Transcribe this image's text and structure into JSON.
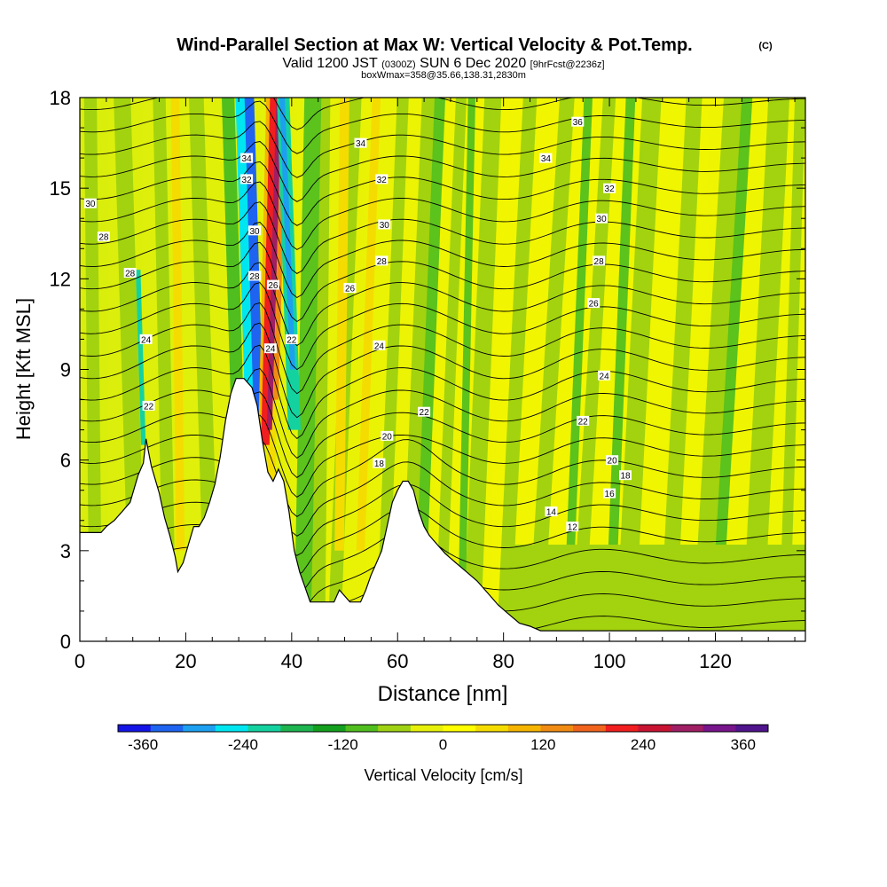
{
  "chart_data": {
    "type": "heatmap",
    "title": "Wind-Parallel Section at Max W: Vertical Velocity & Pot.Temp.",
    "title_mark": "(C)",
    "subtitle_parts": [
      "Valid 1200 JST",
      "(0300Z)",
      "SUN 6 Dec 2020",
      "[9hrFcst@2236z]"
    ],
    "subtitle2": "boxWmax=358@35.66,138.31,2830m",
    "xlabel": "Distance [nm]",
    "ylabel": "Height [Kft MSL]",
    "xlim": [
      0,
      137
    ],
    "ylim": [
      0,
      18
    ],
    "xticks": [
      0,
      20,
      40,
      60,
      80,
      100,
      120
    ],
    "yticks": [
      0,
      3,
      6,
      9,
      12,
      15,
      18
    ],
    "colorbar": {
      "label": "Vertical Velocity [cm/s]",
      "range": [
        -390,
        390
      ],
      "step": 30,
      "ticks": [
        -360,
        -240,
        -120,
        0,
        120,
        240,
        360
      ],
      "colors": [
        "#1414e6",
        "#1e64f0",
        "#1ea0f0",
        "#00e6f0",
        "#14d2a0",
        "#1eb450",
        "#14a01e",
        "#50be1e",
        "#a0d214",
        "#e6f00a",
        "#ffff00",
        "#f5dc00",
        "#f5b400",
        "#f08c14",
        "#f0641e",
        "#f01e1e",
        "#c81432",
        "#a01e64",
        "#78148c",
        "#50148c"
      ]
    },
    "theta_contour_labels": [
      {
        "v": "36",
        "x": 94,
        "y": 17.2
      },
      {
        "v": "34",
        "x": 53,
        "y": 16.5
      },
      {
        "v": "34",
        "x": 88,
        "y": 16.0
      },
      {
        "v": "34",
        "x": 31.5,
        "y": 16.0
      },
      {
        "v": "32",
        "x": 31.5,
        "y": 15.3
      },
      {
        "v": "32",
        "x": 57,
        "y": 15.3
      },
      {
        "v": "32",
        "x": 100,
        "y": 15.0
      },
      {
        "v": "30",
        "x": 2,
        "y": 14.5
      },
      {
        "v": "30",
        "x": 57.5,
        "y": 13.8
      },
      {
        "v": "30",
        "x": 98.5,
        "y": 14.0
      },
      {
        "v": "30",
        "x": 33,
        "y": 13.6
      },
      {
        "v": "28",
        "x": 4.5,
        "y": 13.4
      },
      {
        "v": "28",
        "x": 57,
        "y": 12.6
      },
      {
        "v": "28",
        "x": 98,
        "y": 12.6
      },
      {
        "v": "28",
        "x": 33,
        "y": 12.1
      },
      {
        "v": "28",
        "x": 9.5,
        "y": 12.2
      },
      {
        "v": "26",
        "x": 36.5,
        "y": 11.8
      },
      {
        "v": "26",
        "x": 51,
        "y": 11.7
      },
      {
        "v": "26",
        "x": 97,
        "y": 11.2
      },
      {
        "v": "24",
        "x": 12.5,
        "y": 10.0
      },
      {
        "v": "24",
        "x": 36,
        "y": 9.7
      },
      {
        "v": "24",
        "x": 56.5,
        "y": 9.8
      },
      {
        "v": "24",
        "x": 99,
        "y": 8.8
      },
      {
        "v": "22",
        "x": 40,
        "y": 10.0
      },
      {
        "v": "22",
        "x": 13,
        "y": 7.8
      },
      {
        "v": "22",
        "x": 65,
        "y": 7.6
      },
      {
        "v": "22",
        "x": 95,
        "y": 7.3
      },
      {
        "v": "20",
        "x": 58,
        "y": 6.8
      },
      {
        "v": "20",
        "x": 100.5,
        "y": 6.0
      },
      {
        "v": "18",
        "x": 56.5,
        "y": 5.9
      },
      {
        "v": "18",
        "x": 103,
        "y": 5.5
      },
      {
        "v": "16",
        "x": 100,
        "y": 4.9
      },
      {
        "v": "14",
        "x": 89,
        "y": 4.3
      },
      {
        "v": "12",
        "x": 93,
        "y": 3.8
      }
    ],
    "terrain_profile": [
      {
        "x": 0,
        "y": 3.6
      },
      {
        "x": 4,
        "y": 3.6
      },
      {
        "x": 5,
        "y": 3.8
      },
      {
        "x": 6.5,
        "y": 4.0
      },
      {
        "x": 8,
        "y": 4.3
      },
      {
        "x": 9.5,
        "y": 4.6
      },
      {
        "x": 11,
        "y": 5.5
      },
      {
        "x": 12,
        "y": 5.9
      },
      {
        "x": 12.5,
        "y": 6.7
      },
      {
        "x": 13.5,
        "y": 5.8
      },
      {
        "x": 15,
        "y": 4.9
      },
      {
        "x": 16,
        "y": 4.1
      },
      {
        "x": 17,
        "y": 3.5
      },
      {
        "x": 18,
        "y": 2.8
      },
      {
        "x": 18.5,
        "y": 2.3
      },
      {
        "x": 19.5,
        "y": 2.6
      },
      {
        "x": 20.5,
        "y": 3.2
      },
      {
        "x": 21.5,
        "y": 3.8
      },
      {
        "x": 22.5,
        "y": 3.8
      },
      {
        "x": 23.5,
        "y": 4.1
      },
      {
        "x": 24.5,
        "y": 4.6
      },
      {
        "x": 25.5,
        "y": 5.2
      },
      {
        "x": 26.5,
        "y": 6.1
      },
      {
        "x": 27.5,
        "y": 7.3
      },
      {
        "x": 28.5,
        "y": 8.2
      },
      {
        "x": 29.5,
        "y": 8.7
      },
      {
        "x": 31,
        "y": 8.7
      },
      {
        "x": 32.5,
        "y": 8.4
      },
      {
        "x": 33.5,
        "y": 7.8
      },
      {
        "x": 34.5,
        "y": 6.6
      },
      {
        "x": 35.5,
        "y": 5.6
      },
      {
        "x": 36.5,
        "y": 5.3
      },
      {
        "x": 37.5,
        "y": 5.7
      },
      {
        "x": 38.5,
        "y": 5.3
      },
      {
        "x": 39.5,
        "y": 4.3
      },
      {
        "x": 40.5,
        "y": 3.0
      },
      {
        "x": 41.5,
        "y": 2.3
      },
      {
        "x": 42.5,
        "y": 1.8
      },
      {
        "x": 43.5,
        "y": 1.3
      },
      {
        "x": 48,
        "y": 1.3
      },
      {
        "x": 49,
        "y": 1.7
      },
      {
        "x": 51,
        "y": 1.3
      },
      {
        "x": 53,
        "y": 1.3
      },
      {
        "x": 54,
        "y": 1.7
      },
      {
        "x": 55,
        "y": 2.2
      },
      {
        "x": 56,
        "y": 2.6
      },
      {
        "x": 57,
        "y": 3.0
      },
      {
        "x": 58,
        "y": 3.8
      },
      {
        "x": 59,
        "y": 4.6
      },
      {
        "x": 60,
        "y": 5.0
      },
      {
        "x": 61,
        "y": 5.3
      },
      {
        "x": 62,
        "y": 5.3
      },
      {
        "x": 63,
        "y": 5.0
      },
      {
        "x": 64,
        "y": 4.3
      },
      {
        "x": 65,
        "y": 3.8
      },
      {
        "x": 66,
        "y": 3.5
      },
      {
        "x": 67.5,
        "y": 3.2
      },
      {
        "x": 69,
        "y": 2.9
      },
      {
        "x": 71,
        "y": 2.6
      },
      {
        "x": 73,
        "y": 2.3
      },
      {
        "x": 75,
        "y": 2.0
      },
      {
        "x": 77,
        "y": 1.6
      },
      {
        "x": 79,
        "y": 1.2
      },
      {
        "x": 81,
        "y": 0.9
      },
      {
        "x": 83,
        "y": 0.6
      },
      {
        "x": 85,
        "y": 0.5
      },
      {
        "x": 87,
        "y": 0.35
      },
      {
        "x": 137,
        "y": 0.35
      }
    ]
  }
}
